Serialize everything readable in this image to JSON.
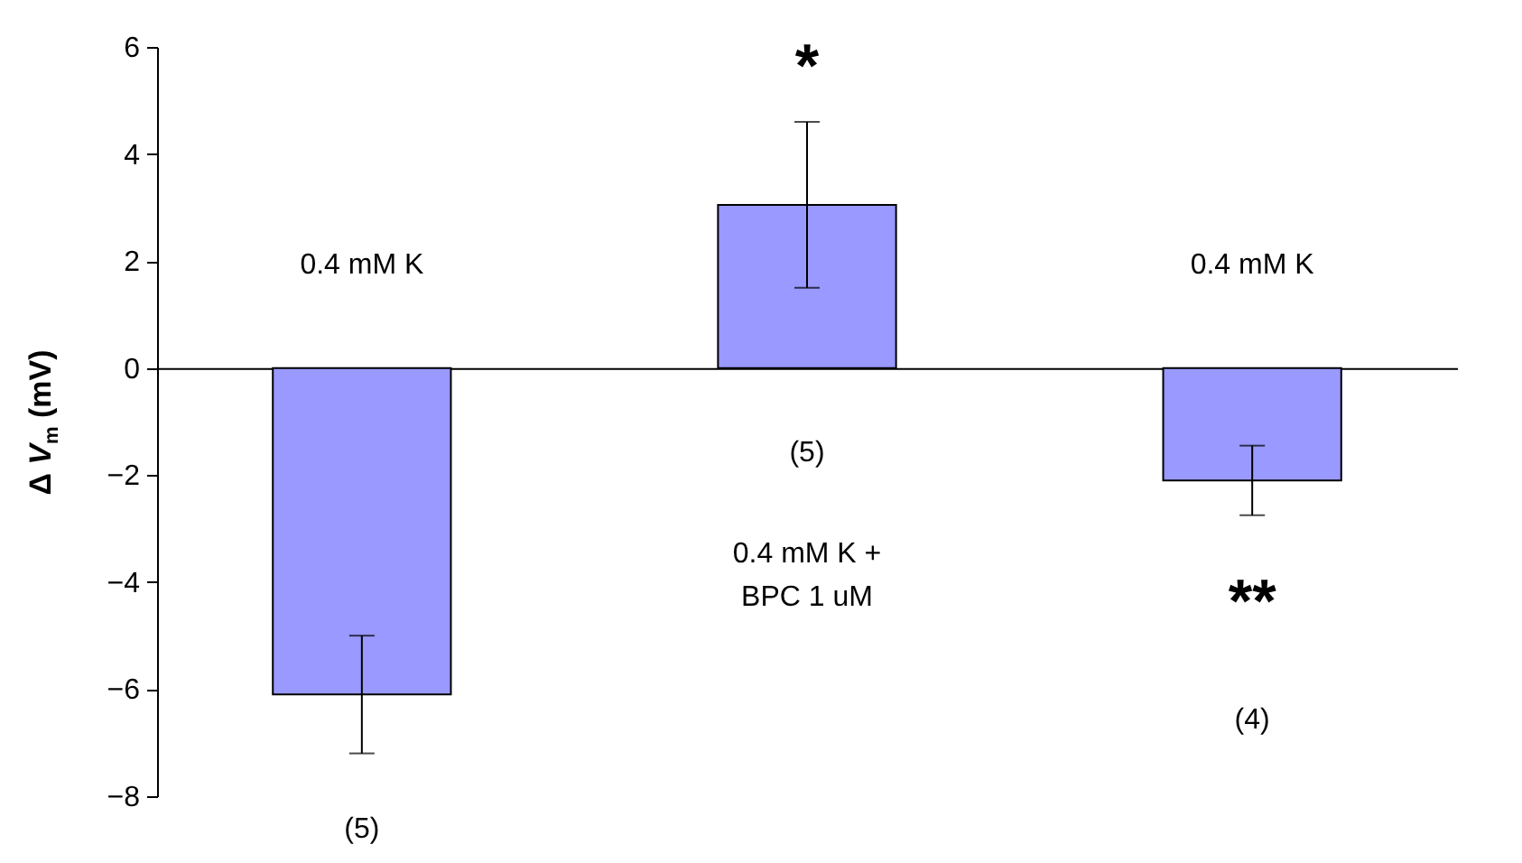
{
  "chart_data": {
    "type": "bar",
    "ylabel": "Δ V$_{m}$ (mV)",
    "categories": [
      null,
      null,
      null
    ],
    "values": [
      -6.1,
      3.05,
      -2.1
    ],
    "errors": [
      1.1,
      1.55,
      0.65
    ],
    "color": "#9999ff",
    "ylim": [
      -8,
      6
    ],
    "yticks": [
      -8,
      -6,
      -4,
      -2,
      0,
      2,
      4,
      6
    ],
    "annotations": [
      "0.4 mM K",
      "*",
      "(5)",
      "0.4 mM K +\nBPC 1 uM",
      "0.4 mM K",
      "**",
      "(4)",
      "(5)"
    ]
  }
}
